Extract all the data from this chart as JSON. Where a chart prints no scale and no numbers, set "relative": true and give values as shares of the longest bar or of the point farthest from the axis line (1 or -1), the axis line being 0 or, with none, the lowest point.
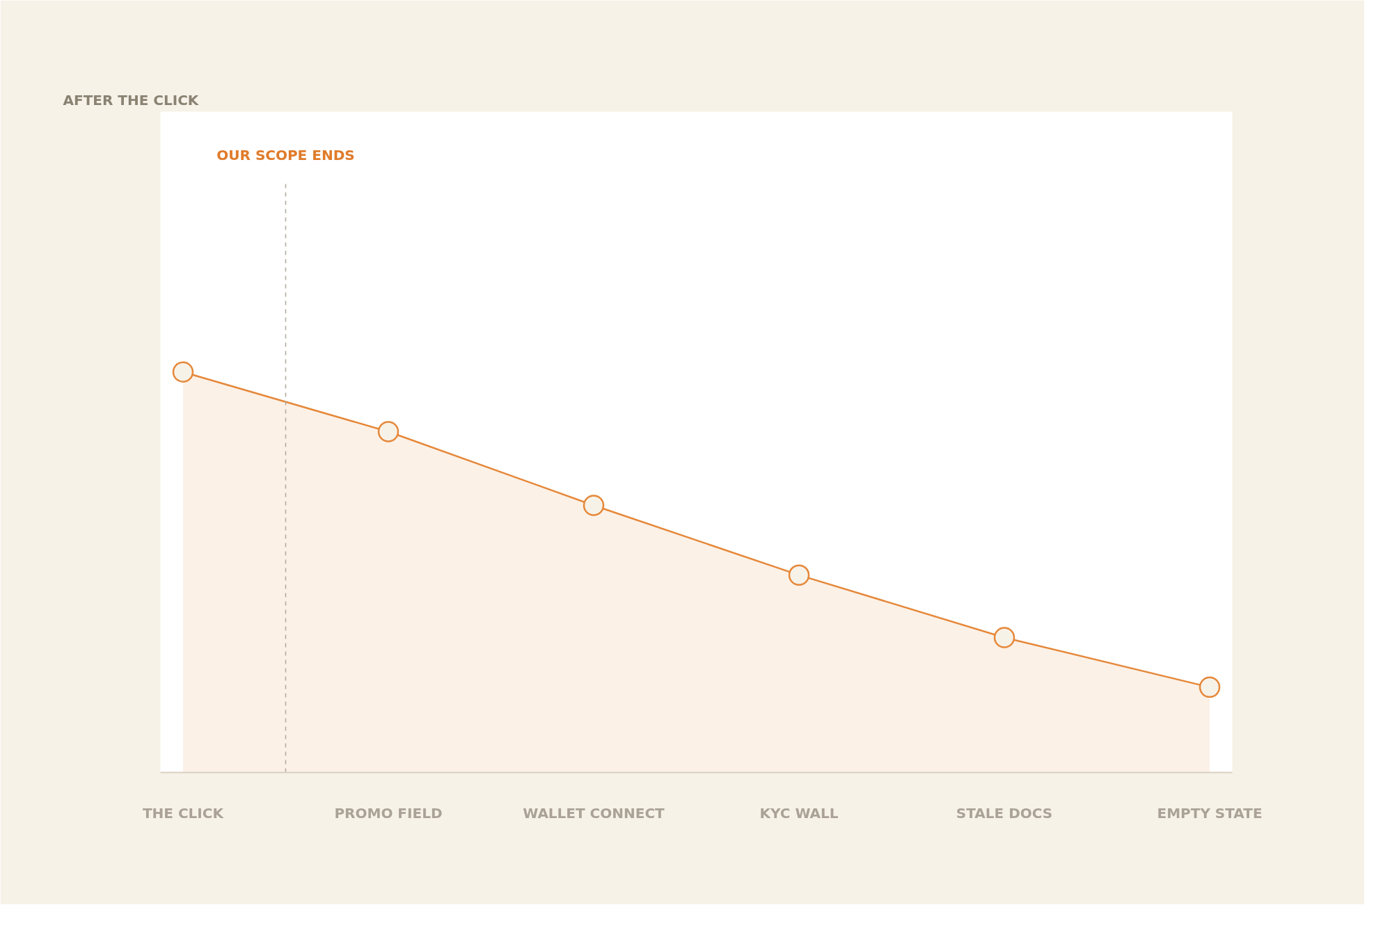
{
  "chart_data": {
    "type": "area",
    "title": "AFTER THE CLICK",
    "relative": true,
    "categories": [
      "THE CLICK",
      "PROMO FIELD",
      "WALLET CONNECT",
      "KYC WALL",
      "STALE DOCS",
      "EMPTY STATE"
    ],
    "series": [
      {
        "color": "#e5883a",
        "values": [
          1,
          0.851,
          0.667,
          0.493,
          0.337,
          0.213
        ]
      }
    ],
    "annotations": [
      "OUR SCOPE ENDS"
    ],
    "marker": "circle",
    "grid": false
  }
}
